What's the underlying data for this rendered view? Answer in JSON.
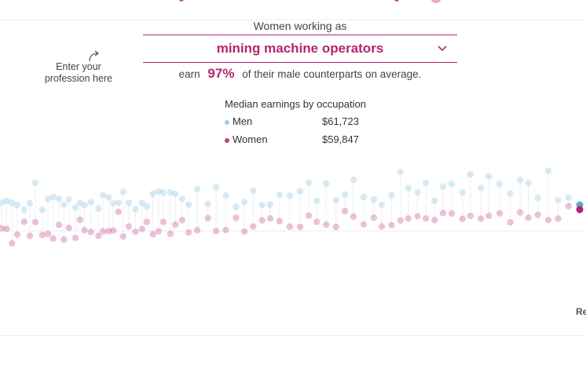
{
  "selector": {
    "heading": "Women working as",
    "occupation": "mining machine operators",
    "chevron_icon": "chevron-down-icon"
  },
  "hint": {
    "line1": "Enter your",
    "line2": "profession here",
    "arrow_icon": "curved-arrow-icon"
  },
  "summary": {
    "earn_prefix": "earn",
    "percent": "97%",
    "earn_suffix": "of their male counterparts on average."
  },
  "legend": {
    "title": "Median earnings by occupation",
    "men_label": "Men",
    "men_value": "$61,723",
    "women_label": "Women",
    "women_value": "$59,847"
  },
  "edge_label": "Re",
  "colors": {
    "accent": "#b6246f",
    "men": "#9ccbe6",
    "women": "#c2418a",
    "men_highlight": "#5fa6c9",
    "women_highlight": "#b6246f"
  }
}
